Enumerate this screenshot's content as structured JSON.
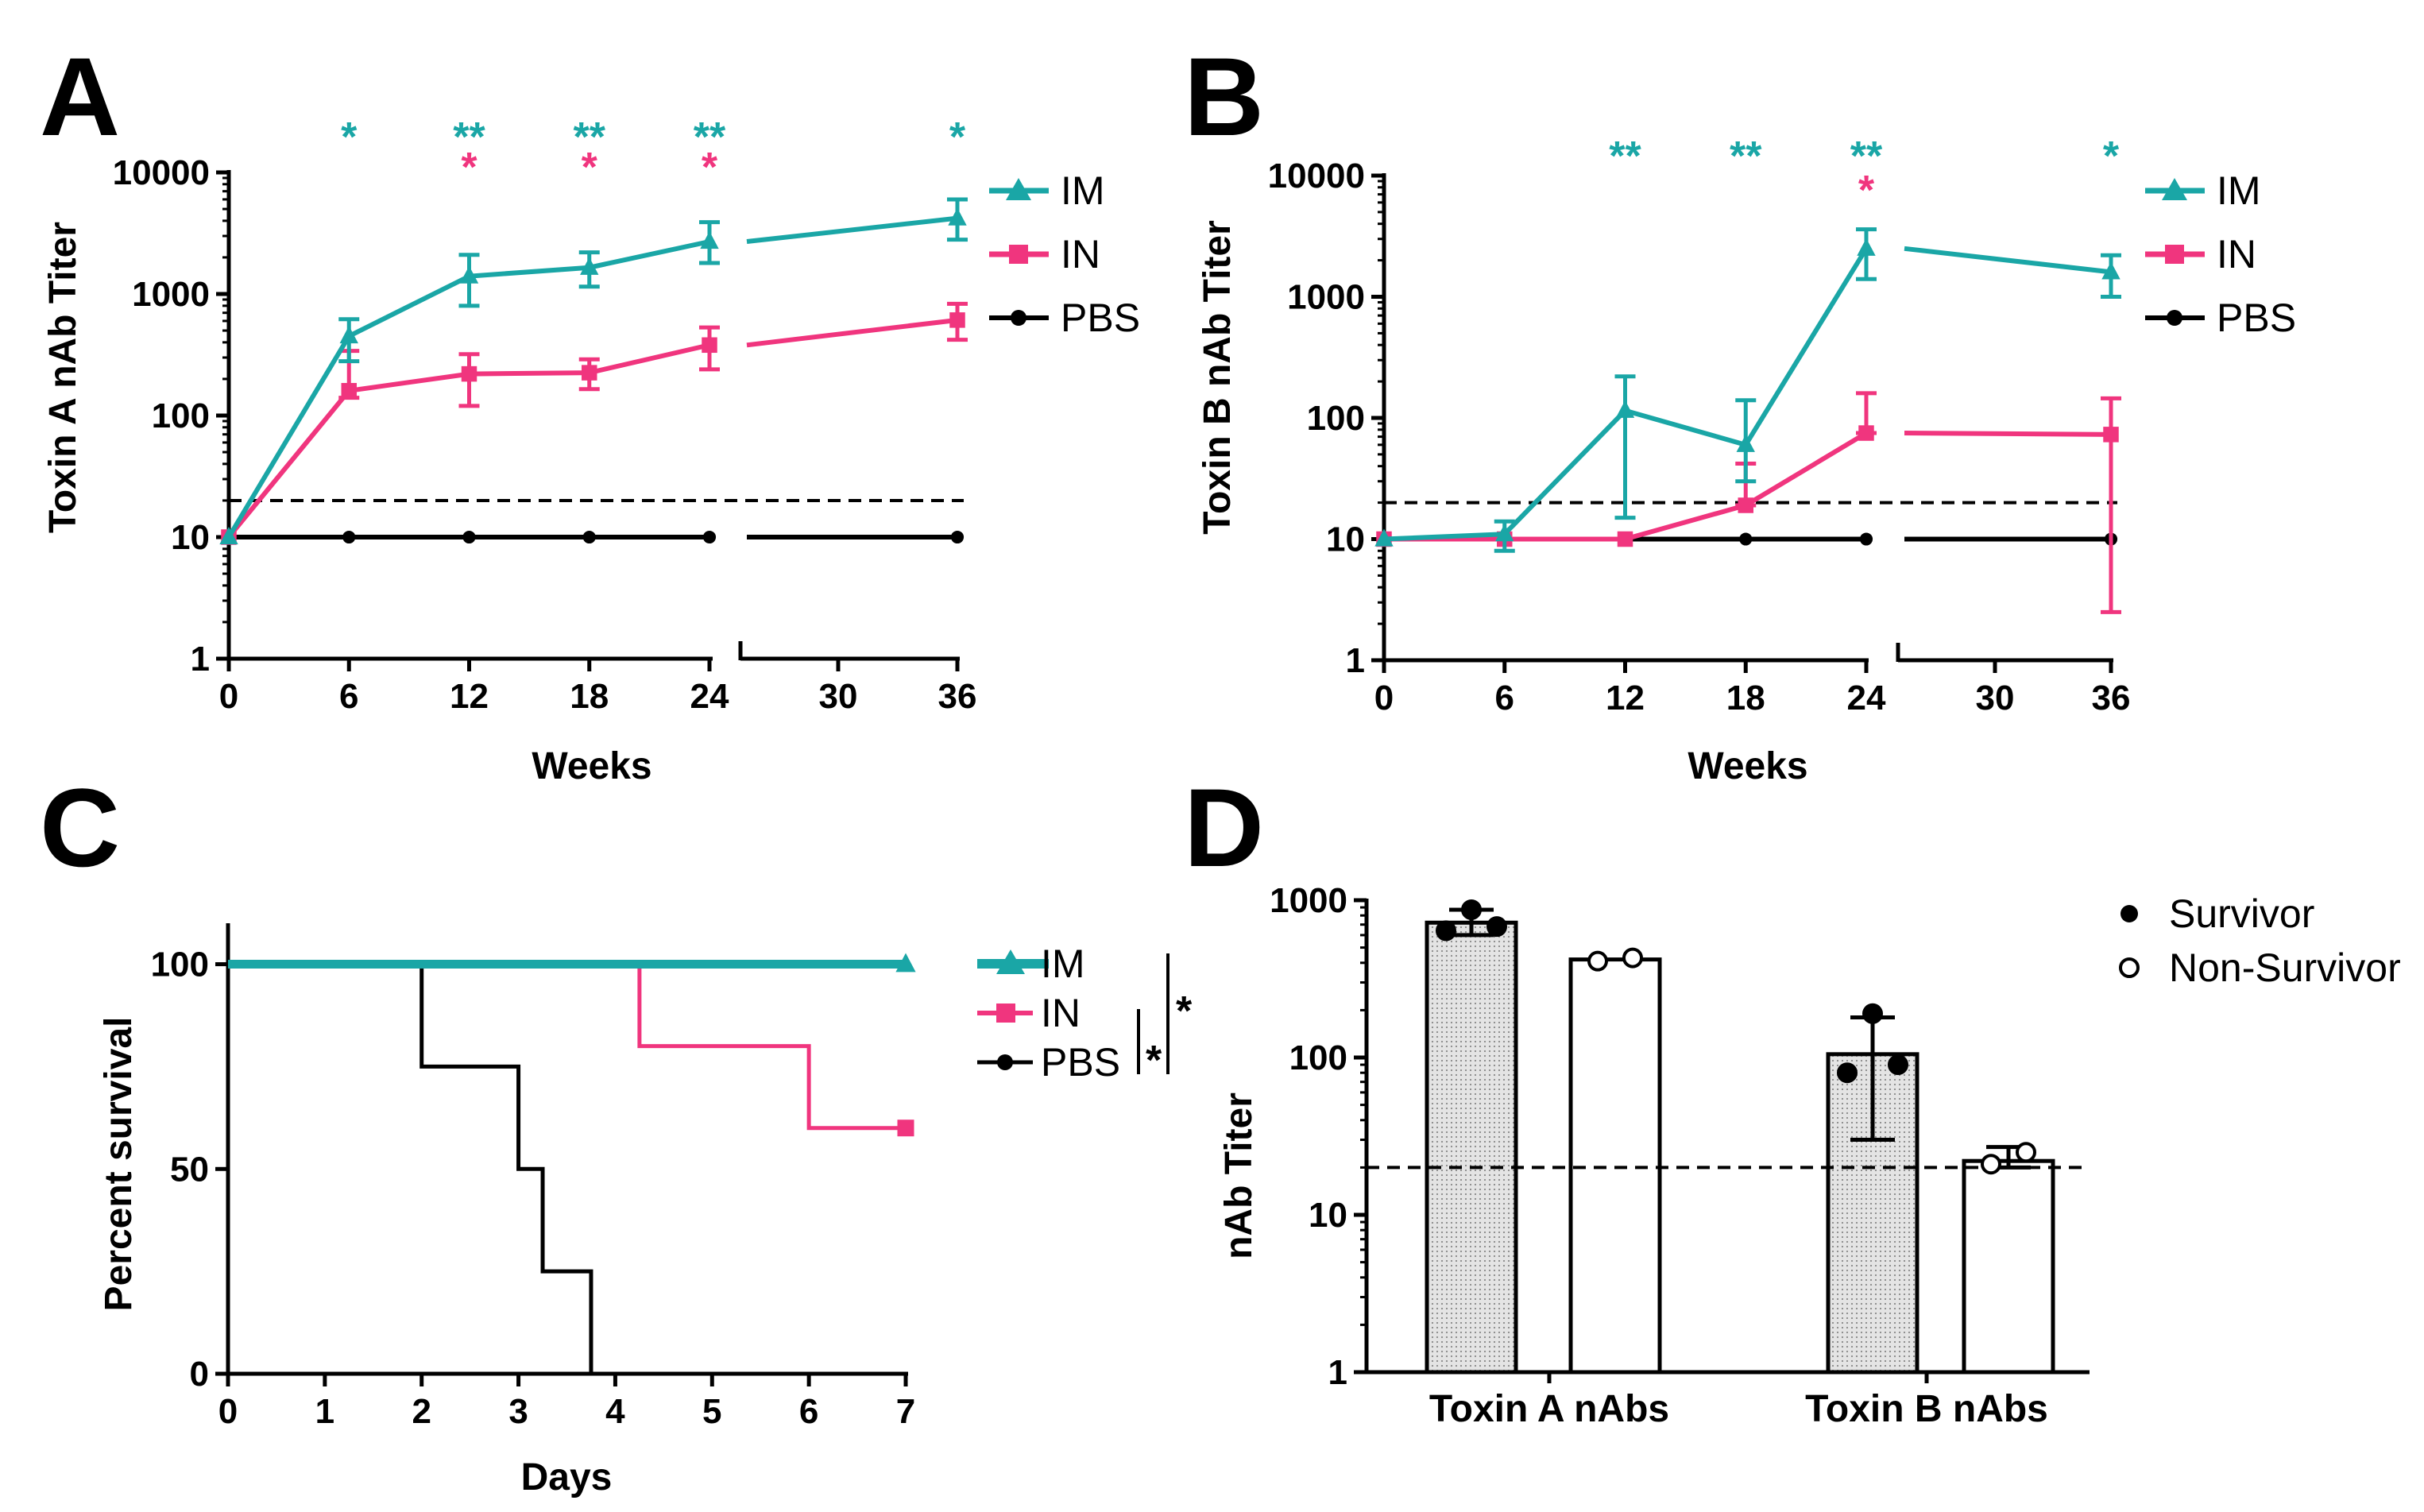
{
  "colors": {
    "im": "#1aa6a6",
    "in": "#f0357e",
    "pbs": "#000000",
    "axis": "#000000"
  },
  "chart_data": [
    {
      "panel": "A",
      "type": "line",
      "xlabel": "Weeks",
      "ylabel": "Toxin A nAb Titer",
      "yscale": "log",
      "ylim": [
        1,
        10000
      ],
      "yticks": [
        1,
        10,
        100,
        1000,
        10000
      ],
      "ytick_labels": [
        "1",
        "10",
        "100",
        "1000",
        "10000"
      ],
      "xticks_left": [
        0,
        6,
        12,
        18,
        24
      ],
      "xticks_right": [
        30,
        36
      ],
      "xtick_labels": [
        "0",
        "6",
        "12",
        "18",
        "24",
        "30",
        "36"
      ],
      "threshold": 20,
      "series": [
        {
          "name": "IM",
          "key": "im",
          "marker": "triangle",
          "x": [
            0,
            6,
            12,
            18,
            24,
            36
          ],
          "y": [
            10,
            450,
            1400,
            1650,
            2700,
            4200
          ],
          "err_lo": [
            10,
            280,
            800,
            1150,
            1800,
            2800
          ],
          "err_hi": [
            10,
            620,
            2100,
            2200,
            3900,
            6000
          ]
        },
        {
          "name": "IN",
          "key": "in",
          "marker": "square",
          "x": [
            0,
            6,
            12,
            18,
            24,
            36
          ],
          "y": [
            10,
            160,
            220,
            225,
            380,
            610
          ],
          "err_lo": [
            10,
            140,
            120,
            165,
            240,
            420
          ],
          "err_hi": [
            10,
            340,
            320,
            290,
            530,
            830
          ]
        },
        {
          "name": "PBS",
          "key": "pbs",
          "marker": "circle",
          "x": [
            0,
            6,
            12,
            18,
            24,
            36
          ],
          "y": [
            10,
            10,
            10,
            10,
            10,
            10
          ]
        }
      ],
      "annotations": [
        {
          "x": 6,
          "row": 0,
          "color": "im",
          "text": "*"
        },
        {
          "x": 12,
          "row": 0,
          "color": "im",
          "text": "**"
        },
        {
          "x": 18,
          "row": 0,
          "color": "im",
          "text": "**"
        },
        {
          "x": 24,
          "row": 0,
          "color": "im",
          "text": "**"
        },
        {
          "x": 36,
          "row": 0,
          "color": "im",
          "text": "*"
        },
        {
          "x": 12,
          "row": 1,
          "color": "in",
          "text": "*"
        },
        {
          "x": 18,
          "row": 1,
          "color": "in",
          "text": "*"
        },
        {
          "x": 24,
          "row": 1,
          "color": "in",
          "text": "*"
        }
      ]
    },
    {
      "panel": "B",
      "type": "line",
      "xlabel": "Weeks",
      "ylabel": "Toxin B nAb Titer",
      "yscale": "log",
      "ylim": [
        1,
        10000
      ],
      "yticks": [
        1,
        10,
        100,
        1000,
        10000
      ],
      "ytick_labels": [
        "1",
        "10",
        "100",
        "1000",
        "10000"
      ],
      "xticks_left": [
        0,
        6,
        12,
        18,
        24
      ],
      "xticks_right": [
        30,
        36
      ],
      "xtick_labels": [
        "0",
        "6",
        "12",
        "18",
        "24",
        "30",
        "36"
      ],
      "threshold": 20,
      "series": [
        {
          "name": "IM",
          "key": "im",
          "marker": "triangle",
          "x": [
            0,
            6,
            12,
            18,
            24,
            36
          ],
          "y": [
            10,
            11,
            115,
            60,
            2500,
            1600
          ],
          "err_lo": [
            10,
            8,
            15,
            30,
            1400,
            1000
          ],
          "err_hi": [
            10,
            14,
            220,
            140,
            3600,
            2200
          ]
        },
        {
          "name": "IN",
          "key": "in",
          "marker": "square",
          "x": [
            0,
            6,
            12,
            18,
            24,
            36
          ],
          "y": [
            10,
            10,
            10,
            19,
            75,
            73
          ],
          "err_lo": [
            10,
            10,
            10,
            19,
            75,
            2.5
          ],
          "err_hi": [
            10,
            10,
            10,
            42,
            160,
            145
          ]
        },
        {
          "name": "PBS",
          "key": "pbs",
          "marker": "circle",
          "x": [
            0,
            6,
            12,
            18,
            24,
            36
          ],
          "y": [
            10,
            10,
            10,
            10,
            10,
            10
          ]
        }
      ],
      "annotations": [
        {
          "x": 12,
          "row": 0,
          "color": "im",
          "text": "**"
        },
        {
          "x": 18,
          "row": 0,
          "color": "im",
          "text": "**"
        },
        {
          "x": 24,
          "row": 0,
          "color": "im",
          "text": "**"
        },
        {
          "x": 36,
          "row": 0,
          "color": "im",
          "text": "*"
        },
        {
          "x": 24,
          "row": 1,
          "color": "in",
          "text": "*"
        }
      ]
    },
    {
      "panel": "C",
      "type": "line",
      "subtype": "survival",
      "xlabel": "Days",
      "ylabel": "Percent survival",
      "xlim": [
        0,
        7
      ],
      "ylim": [
        0,
        110
      ],
      "xticks": [
        0,
        1,
        2,
        3,
        4,
        5,
        6,
        7
      ],
      "xtick_labels": [
        "0",
        "1",
        "2",
        "3",
        "4",
        "5",
        "6",
        "7"
      ],
      "yticks": [
        0,
        50,
        100
      ],
      "ytick_labels": [
        "0",
        "50",
        "100"
      ],
      "series": [
        {
          "name": "IM",
          "key": "im",
          "marker": "triangle",
          "steps": [
            [
              0,
              100
            ],
            [
              7,
              100
            ]
          ]
        },
        {
          "name": "IN",
          "key": "in",
          "marker": "square",
          "steps": [
            [
              0,
              100
            ],
            [
              4.25,
              100
            ],
            [
              4.25,
              80
            ],
            [
              6,
              80
            ],
            [
              6,
              60
            ],
            [
              7,
              60
            ]
          ]
        },
        {
          "name": "PBS",
          "key": "pbs",
          "marker": "circle",
          "steps": [
            [
              0,
              100
            ],
            [
              2,
              100
            ],
            [
              2,
              75
            ],
            [
              3,
              75
            ],
            [
              3,
              50
            ],
            [
              3.25,
              50
            ],
            [
              3.25,
              25
            ],
            [
              3.75,
              25
            ],
            [
              3.75,
              0
            ]
          ]
        }
      ],
      "significance": [
        "*",
        "*"
      ]
    },
    {
      "panel": "D",
      "type": "bar",
      "ylabel": "nAb Titer",
      "yscale": "log",
      "ylim": [
        1,
        1000
      ],
      "yticks": [
        1,
        10,
        100,
        1000
      ],
      "ytick_labels": [
        "1",
        "10",
        "100",
        "1000"
      ],
      "categories": [
        "Toxin A nAbs",
        "Toxin B nAbs"
      ],
      "threshold": 20,
      "legend": [
        "Survivor",
        "Non-Survivor"
      ],
      "bars": [
        {
          "group": 0,
          "kind": "Survivor",
          "value": 720,
          "err_lo": 600,
          "err_hi": 870,
          "points": [
            870,
            640,
            680
          ]
        },
        {
          "group": 0,
          "kind": "Non-Survivor",
          "value": 420,
          "points": [
            410,
            430
          ]
        },
        {
          "group": 1,
          "kind": "Survivor",
          "value": 105,
          "err_lo": 30,
          "err_hi": 180,
          "points": [
            190,
            80,
            90
          ]
        },
        {
          "group": 1,
          "kind": "Non-Survivor",
          "value": 22,
          "err_lo": 20,
          "err_hi": 27,
          "points": [
            21,
            25
          ]
        }
      ]
    }
  ]
}
